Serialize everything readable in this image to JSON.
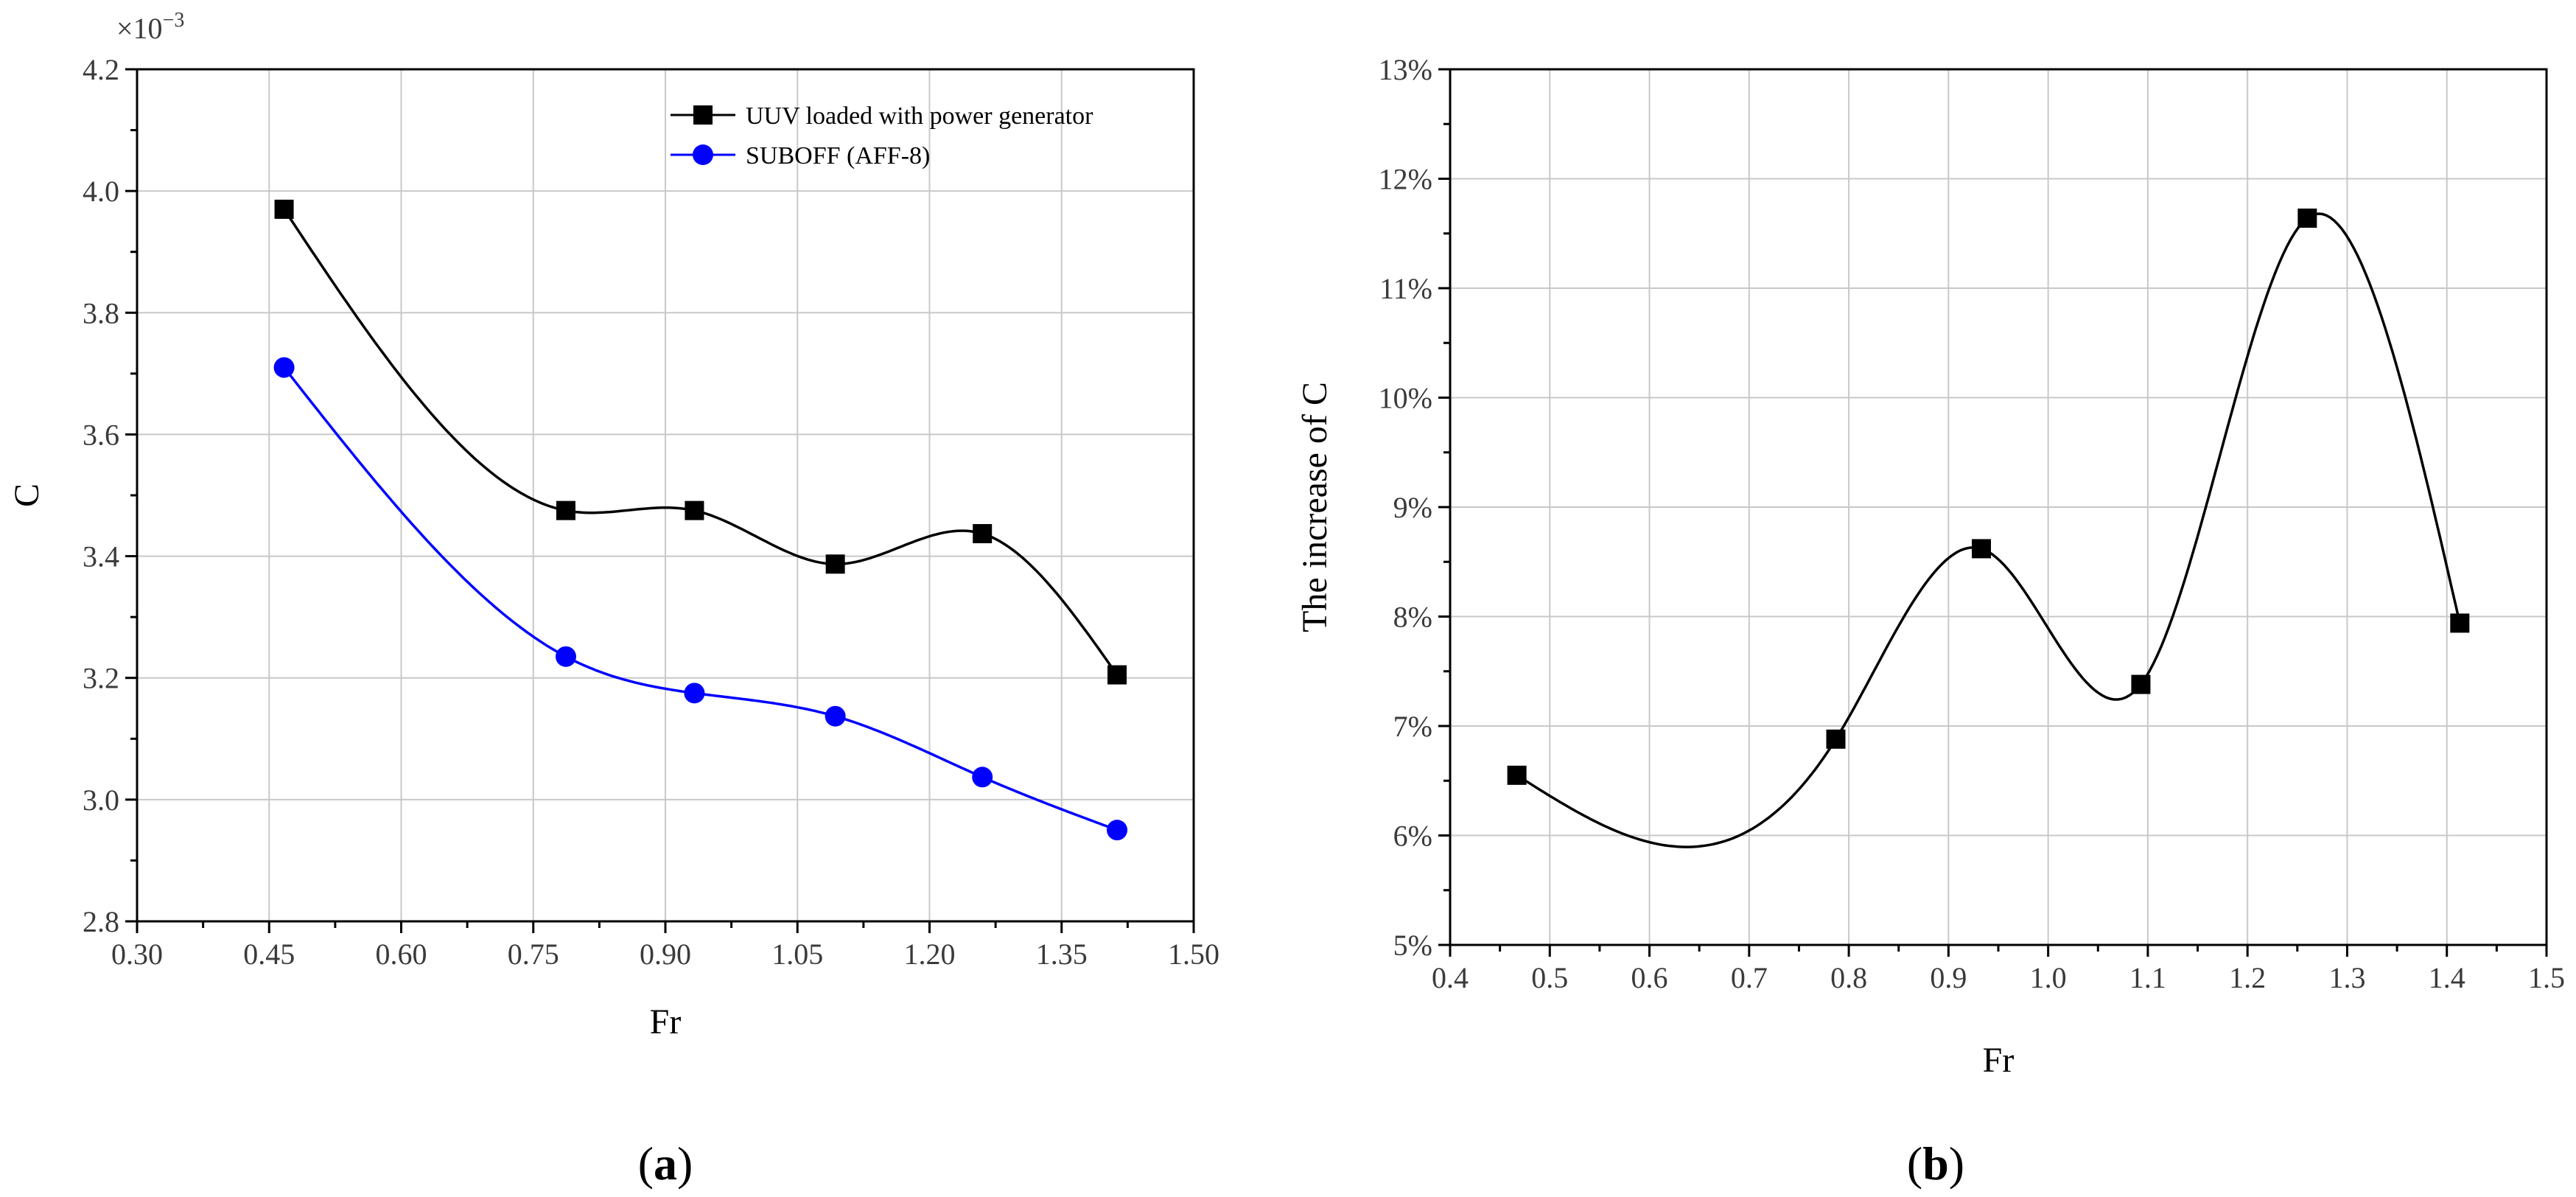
{
  "chart_data": [
    {
      "type": "line",
      "panel_label": "a",
      "title": "",
      "xlabel": "Fr",
      "ylabel": "C",
      "scale_label": "×10",
      "scale_exponent": "−3",
      "xlim": [
        0.3,
        1.5
      ],
      "ylim": [
        2.8,
        4.2
      ],
      "xticks": [
        "0.30",
        "0.45",
        "0.60",
        "0.75",
        "0.90",
        "1.05",
        "1.20",
        "1.35",
        "1.50"
      ],
      "yticks": [
        "2.8",
        "3.0",
        "3.2",
        "3.4",
        "3.6",
        "3.8",
        "4.0",
        "4.2"
      ],
      "grid": true,
      "legend_position": "top-right",
      "series": [
        {
          "name": "UUV loaded with power generator",
          "color": "#000000",
          "marker": "square",
          "x": [
            0.467,
            0.787,
            0.933,
            1.093,
            1.26,
            1.413
          ],
          "y": [
            3.97,
            3.475,
            3.475,
            3.387,
            3.437,
            3.205
          ]
        },
        {
          "name": "SUBOFF (AFF-8)",
          "color": "#0000ff",
          "marker": "circle",
          "x": [
            0.467,
            0.787,
            0.933,
            1.093,
            1.26,
            1.413
          ],
          "y": [
            3.71,
            3.235,
            3.175,
            3.137,
            3.037,
            2.95
          ]
        }
      ]
    },
    {
      "type": "line",
      "panel_label": "b",
      "title": "",
      "xlabel": "Fr",
      "ylabel": "The increase of  C",
      "xlim": [
        0.4,
        1.5
      ],
      "ylim": [
        5,
        13
      ],
      "xticks": [
        "0.4",
        "0.5",
        "0.6",
        "0.7",
        "0.8",
        "0.9",
        "1.0",
        "1.1",
        "1.2",
        "1.3",
        "1.4",
        "1.5"
      ],
      "yticks": [
        "5%",
        "6%",
        "7%",
        "8%",
        "9%",
        "10%",
        "11%",
        "12%",
        "13%"
      ],
      "grid": true,
      "series": [
        {
          "name": "The increase of C",
          "color": "#000000",
          "marker": "square",
          "x": [
            0.467,
            0.787,
            0.933,
            1.093,
            1.26,
            1.413
          ],
          "y": [
            6.55,
            6.88,
            8.62,
            7.38,
            11.64,
            7.94
          ]
        }
      ]
    }
  ]
}
